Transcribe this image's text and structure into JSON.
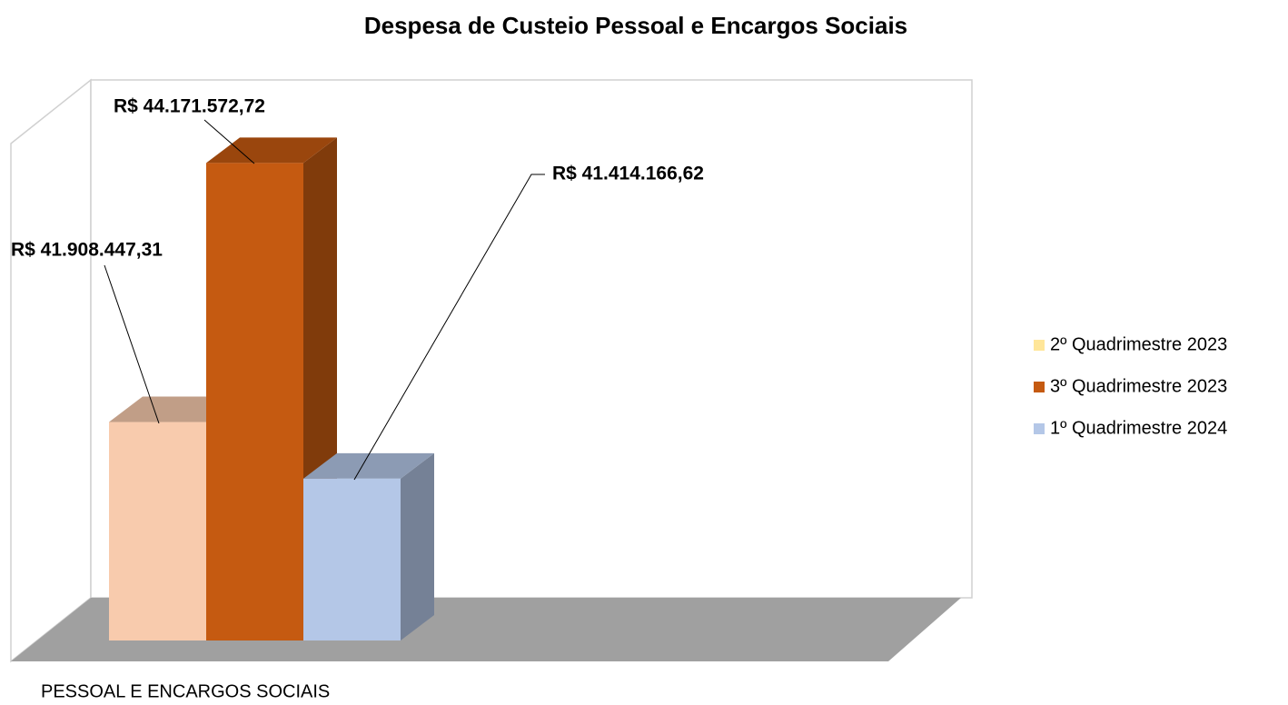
{
  "chart_data": {
    "type": "bar3d",
    "title": "Despesa de Custeio Pessoal e Encargos Sociais",
    "categories": [
      "PESSOAL E ENCARGOS SOCIAIS"
    ],
    "series": [
      {
        "name": "2º Quadrimestre 2023",
        "color": "#f8cbad",
        "legend_color": "#ffe699",
        "values": [
          41908447.31
        ],
        "value_labels": [
          "R$ 41.908.447,31"
        ]
      },
      {
        "name": "3º Quadrimestre 2023",
        "color": "#c55a11",
        "legend_color": "#c55a11",
        "values": [
          44171572.72
        ],
        "value_labels": [
          "R$ 44.171.572,72"
        ]
      },
      {
        "name": "1º Quadrimestre 2024",
        "color": "#b4c7e7",
        "legend_color": "#b4c7e7",
        "values": [
          41414166.62
        ],
        "value_labels": [
          "R$ 41.414.166,62"
        ]
      }
    ],
    "ylim": [
      40000000,
      44500000
    ],
    "legend": "right"
  }
}
